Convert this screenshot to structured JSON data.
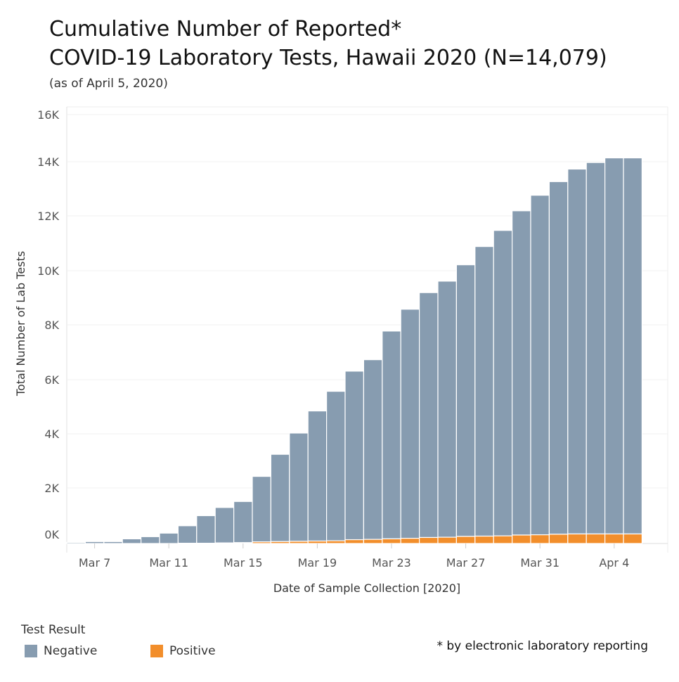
{
  "title_line1": "Cumulative Number of Reported*",
  "title_line2": "COVID-19 Laboratory Tests, Hawaii 2020 (N=14,079)",
  "subtitle": "(as of April 5, 2020)",
  "footnote": "* by electronic laboratory reporting",
  "legend": {
    "title": "Test Result",
    "items": [
      {
        "label": "Negative",
        "color": "#879cb0"
      },
      {
        "label": "Positive",
        "color": "#f28e2b"
      }
    ]
  },
  "chart_data": {
    "type": "bar",
    "stacked": true,
    "xlabel": "Date of Sample Collection [2020]",
    "ylabel": "Total Number of Lab Tests",
    "ylim": [
      0,
      16000
    ],
    "yticks": [
      0,
      2000,
      4000,
      6000,
      8000,
      10000,
      12000,
      14000,
      16000
    ],
    "ytick_labels": [
      "0K",
      "2K",
      "4K",
      "6K",
      "8K",
      "10K",
      "12K",
      "14K",
      "16K"
    ],
    "categories": [
      "Mar 6",
      "Mar 7",
      "Mar 8",
      "Mar 9",
      "Mar 10",
      "Mar 11",
      "Mar 12",
      "Mar 13",
      "Mar 14",
      "Mar 15",
      "Mar 16",
      "Mar 17",
      "Mar 18",
      "Mar 19",
      "Mar 20",
      "Mar 21",
      "Mar 22",
      "Mar 23",
      "Mar 24",
      "Mar 25",
      "Mar 26",
      "Mar 27",
      "Mar 28",
      "Mar 29",
      "Mar 30",
      "Mar 31",
      "Apr 1",
      "Apr 2",
      "Apr 3",
      "Apr 4",
      "Apr 5"
    ],
    "xtick_labels": [
      "Mar 7",
      "Mar 11",
      "Mar 15",
      "Mar 19",
      "Mar 23",
      "Mar 27",
      "Mar 31",
      "Apr 4"
    ],
    "series": [
      {
        "name": "Negative",
        "color": "#879cb0",
        "values": [
          40,
          70,
          70,
          170,
          250,
          380,
          640,
          1010,
          1300,
          1510,
          2400,
          3200,
          3970,
          4770,
          5480,
          6180,
          6590,
          7620,
          8400,
          8980,
          9390,
          9960,
          10620,
          11200,
          11890,
          12450,
          12930,
          13380,
          13620,
          13790,
          13790
        ]
      },
      {
        "name": "Positive",
        "color": "#f28e2b",
        "values": [
          0,
          0,
          0,
          0,
          0,
          0,
          10,
          10,
          20,
          30,
          60,
          70,
          80,
          90,
          100,
          140,
          150,
          170,
          190,
          220,
          230,
          260,
          270,
          280,
          310,
          320,
          340,
          350,
          350,
          350,
          350
        ]
      }
    ],
    "grid": true
  }
}
